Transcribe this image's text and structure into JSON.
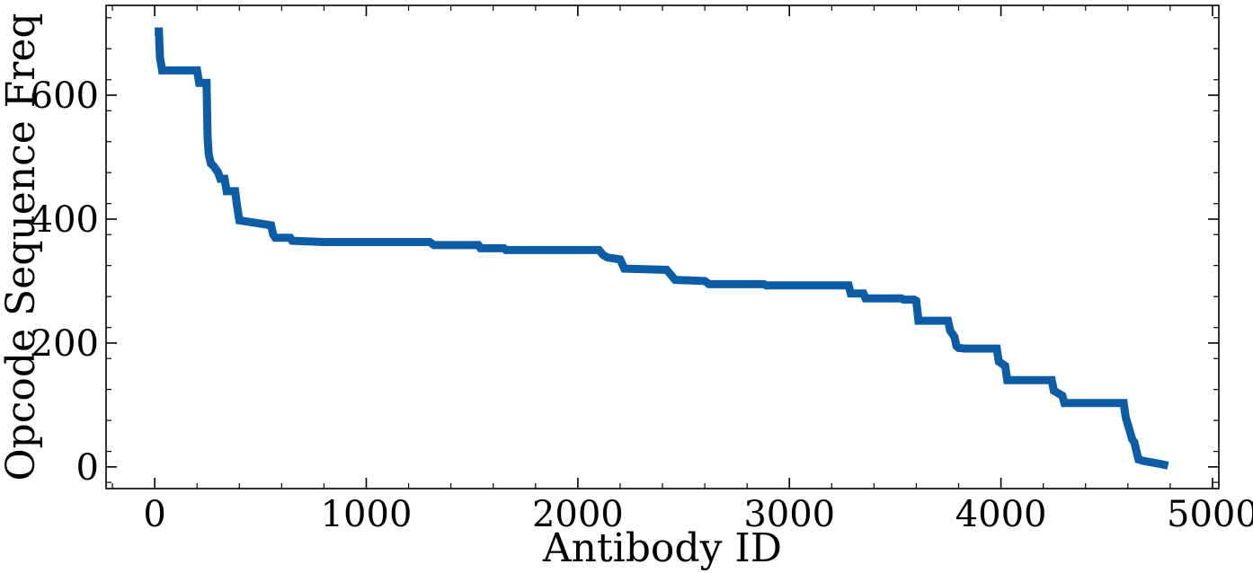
{
  "chart_data": {
    "type": "line",
    "title": "",
    "xlabel": "Antibody ID",
    "ylabel": "Opcode Sequence Freq",
    "xlim": [
      -230,
      5030
    ],
    "ylim": [
      -35,
      745
    ],
    "xticks": [
      0,
      1000,
      2000,
      3000,
      4000,
      5000
    ],
    "xtick_labels": [
      "0",
      "1000",
      "2000",
      "3000",
      "4000",
      "5000"
    ],
    "yticks": [
      0,
      200,
      400,
      600
    ],
    "ytick_labels": [
      "0",
      "200",
      "400",
      "600"
    ],
    "grid": false,
    "legend": "none",
    "line_color": "#0C5DA5",
    "series": [
      {
        "x": [
          0,
          20,
          25,
          35,
          200,
          210,
          245,
          250,
          255,
          265,
          280,
          300,
          310,
          330,
          340,
          380,
          390,
          400,
          550,
          560,
          570,
          640,
          650,
          800,
          1300,
          1320,
          1530,
          1540,
          1650,
          1660,
          2100,
          2120,
          2140,
          2200,
          2220,
          2420,
          2440,
          2460,
          2600,
          2620,
          2880,
          2890,
          3280,
          3290,
          3350,
          3360,
          3530,
          3540,
          3590,
          3600,
          3610,
          3750,
          3760,
          3780,
          3790,
          3800,
          3830,
          3980,
          3990,
          4020,
          4030,
          4240,
          4250,
          4290,
          4300,
          4580,
          4590,
          4620,
          4630,
          4650,
          4670,
          4750,
          4790
        ],
        "y": [
          703,
          703,
          660,
          640,
          640,
          620,
          620,
          530,
          505,
          490,
          485,
          475,
          465,
          465,
          445,
          445,
          420,
          398,
          390,
          375,
          370,
          370,
          365,
          363,
          363,
          358,
          358,
          353,
          353,
          350,
          350,
          342,
          338,
          335,
          320,
          318,
          310,
          302,
          300,
          295,
          295,
          293,
          293,
          280,
          280,
          272,
          272,
          270,
          270,
          268,
          236,
          236,
          220,
          210,
          195,
          192,
          191,
          191,
          170,
          163,
          140,
          140,
          123,
          115,
          103,
          103,
          80,
          45,
          40,
          12,
          10,
          5,
          2
        ]
      }
    ]
  }
}
